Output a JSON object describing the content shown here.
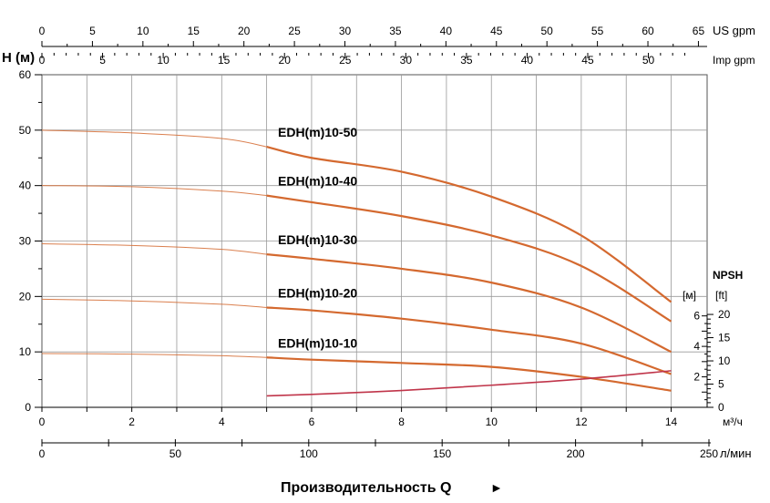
{
  "chart_data": {
    "type": "line",
    "ylabel": "H (м)",
    "xlabel": "Производительность Q",
    "xlabel_arrow": "►",
    "x_unit": "м³/ч",
    "y_ticks": [
      "0",
      "10",
      "20",
      "30",
      "40",
      "50",
      "60"
    ],
    "ylim": [
      0,
      60
    ],
    "xlim": [
      0,
      14.8
    ],
    "x_ticks": [
      "0",
      "2",
      "4",
      "6",
      "8",
      "10",
      "12",
      "14"
    ],
    "x_tick_values": [
      0,
      2,
      4,
      6,
      8,
      10,
      12,
      14
    ],
    "axis_us_gpm": {
      "label": "US gpm",
      "ticks": [
        "0",
        "5",
        "10",
        "15",
        "20",
        "25",
        "30",
        "35",
        "40",
        "45",
        "50",
        "55",
        "60",
        "65"
      ],
      "values": [
        0,
        5,
        10,
        15,
        20,
        25,
        30,
        35,
        40,
        45,
        50,
        55,
        60,
        65
      ]
    },
    "axis_imp_gpm": {
      "label": "Imp gpm",
      "ticks": [
        "0",
        "5",
        "10",
        "15",
        "20",
        "25",
        "30",
        "35",
        "40",
        "45",
        "50"
      ],
      "values": [
        0,
        5,
        10,
        15,
        20,
        25,
        30,
        35,
        40,
        45,
        50
      ]
    },
    "axis_lmin": {
      "label": "л/мин",
      "ticks": [
        "0",
        "50",
        "100",
        "150",
        "200",
        "250"
      ],
      "values": [
        0,
        50,
        100,
        150,
        200,
        250
      ]
    },
    "npsh_axis": {
      "title": "NPSH",
      "m_label": "[м]",
      "ft_label": "[ft]",
      "m_ticks": [
        "2",
        "4",
        "6"
      ],
      "m_values": [
        2,
        4,
        6
      ],
      "ft_ticks": [
        "0",
        "5",
        "10",
        "15",
        "20"
      ],
      "ft_values": [
        0,
        5,
        10,
        15,
        20
      ],
      "range_m": [
        0,
        6.1
      ]
    },
    "grid": true,
    "series": [
      {
        "name": "EDH(m)10-50",
        "color": "#d4692f",
        "x": [
          0,
          2,
          4,
          5,
          6,
          8,
          10,
          12,
          14
        ],
        "y": [
          50,
          49.5,
          48.5,
          47,
          45,
          42.5,
          38,
          31,
          19
        ]
      },
      {
        "name": "EDH(m)10-40",
        "color": "#d4692f",
        "x": [
          0,
          2,
          4,
          5,
          6,
          8,
          10,
          12,
          14
        ],
        "y": [
          40,
          39.8,
          39,
          38.2,
          37,
          34.5,
          31,
          25.5,
          15.5
        ]
      },
      {
        "name": "EDH(m)10-30",
        "color": "#d4692f",
        "x": [
          0,
          2,
          4,
          5,
          6,
          8,
          10,
          12,
          14
        ],
        "y": [
          29.5,
          29.2,
          28.5,
          27.6,
          26.8,
          25,
          22.5,
          18,
          10
        ]
      },
      {
        "name": "EDH(m)10-20",
        "color": "#d4692f",
        "x": [
          0,
          2,
          4,
          5,
          6,
          8,
          10,
          12,
          14
        ],
        "y": [
          19.5,
          19.2,
          18.6,
          18,
          17.5,
          16,
          14,
          11.5,
          6
        ]
      },
      {
        "name": "EDH(m)10-10",
        "color": "#d4692f",
        "x": [
          0,
          2,
          4,
          5,
          6,
          8,
          10,
          12,
          14
        ],
        "y": [
          9.7,
          9.6,
          9.3,
          9,
          8.6,
          8,
          7.3,
          5.5,
          3
        ]
      }
    ],
    "npsh_curve": {
      "color": "#c0354a",
      "x": [
        5,
        6,
        8,
        10,
        12,
        14
      ],
      "y_m": [
        0.75,
        0.85,
        1.1,
        1.45,
        1.85,
        2.4
      ]
    }
  }
}
